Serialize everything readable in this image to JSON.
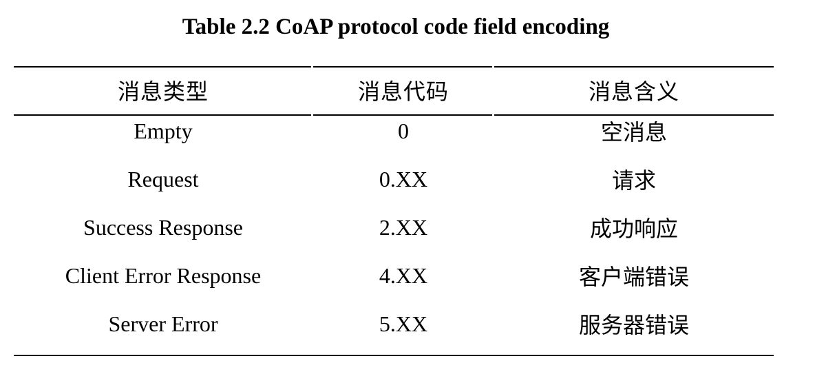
{
  "table": {
    "caption": "Table 2.2 CoAP protocol code field encoding",
    "headers": [
      "消息类型",
      "消息代码",
      "消息含义"
    ],
    "rows": [
      [
        "Empty",
        "0",
        "空消息"
      ],
      [
        "Request",
        "0.XX",
        "请求"
      ],
      [
        "Success Response",
        "2.XX",
        "成功响应"
      ],
      [
        "Client Error Response",
        "4.XX",
        "客户端错误"
      ],
      [
        "Server Error",
        "5.XX",
        "服务器错误"
      ]
    ]
  }
}
